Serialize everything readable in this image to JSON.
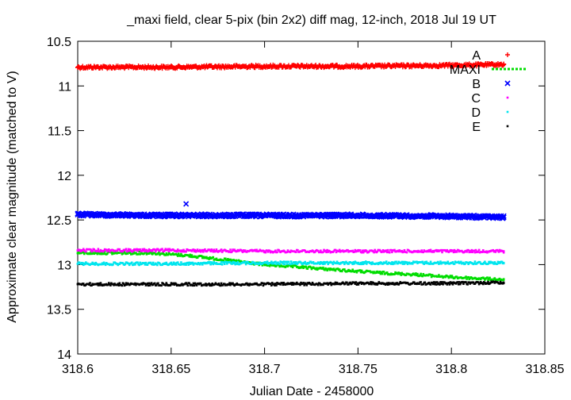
{
  "chart_data": {
    "type": "scatter",
    "title": "_maxi field, clear 5-pix (bin 2x2) diff mag, 12-inch, 2018 Jul 19 UT",
    "xlabel": "Julian Date - 2458000",
    "ylabel": "Approximate clear magnitude (matched to V)",
    "xlim": [
      318.6,
      318.85
    ],
    "ylim": [
      10.5,
      14
    ],
    "y_reversed": true,
    "grid": false,
    "legend_position": "top-right",
    "x_ticks": [
      "318.6",
      "318.65",
      "318.7",
      "318.75",
      "318.8",
      "318.85"
    ],
    "y_ticks": [
      "10.5",
      "11",
      "11.5",
      "12",
      "12.5",
      "13",
      "13.5",
      "14"
    ],
    "series": [
      {
        "name": "A",
        "color": "#ff0000",
        "marker": "plus",
        "x": [
          318.6,
          318.65,
          318.7,
          318.75,
          318.8,
          318.828
        ],
        "y": [
          10.79,
          10.79,
          10.78,
          10.78,
          10.77,
          10.76
        ]
      },
      {
        "name": "MAXI",
        "color": "#00dd00",
        "marker": "dot",
        "x": [
          318.6,
          318.62,
          318.64,
          318.66,
          318.68,
          318.7,
          318.72,
          318.74,
          318.76,
          318.78,
          318.8,
          318.82,
          318.828
        ],
        "y": [
          12.87,
          12.87,
          12.87,
          12.9,
          12.95,
          13.0,
          13.03,
          13.06,
          13.09,
          13.11,
          13.14,
          13.16,
          13.17
        ]
      },
      {
        "name": "B",
        "color": "#0000ff",
        "marker": "cross",
        "x": [
          318.6,
          318.65,
          318.7,
          318.75,
          318.8,
          318.828
        ],
        "y": [
          12.44,
          12.45,
          12.45,
          12.45,
          12.46,
          12.47
        ]
      },
      {
        "name": "B (outlier)",
        "color": "#0000ff",
        "marker": "cross",
        "x": [
          318.658
        ],
        "y": [
          12.32
        ]
      },
      {
        "name": "C",
        "color": "#ff00ff",
        "marker": "dot",
        "x": [
          318.6,
          318.65,
          318.7,
          318.75,
          318.8,
          318.828
        ],
        "y": [
          12.84,
          12.84,
          12.85,
          12.85,
          12.85,
          12.85
        ]
      },
      {
        "name": "D",
        "color": "#00e5ee",
        "marker": "dot",
        "x": [
          318.6,
          318.65,
          318.7,
          318.75,
          318.8,
          318.828
        ],
        "y": [
          12.99,
          12.99,
          12.98,
          12.98,
          12.98,
          12.98
        ]
      },
      {
        "name": "E",
        "color": "#000000",
        "marker": "dot",
        "x": [
          318.6,
          318.65,
          318.7,
          318.75,
          318.8,
          318.828
        ],
        "y": [
          13.22,
          13.22,
          13.22,
          13.21,
          13.21,
          13.2
        ]
      }
    ]
  }
}
